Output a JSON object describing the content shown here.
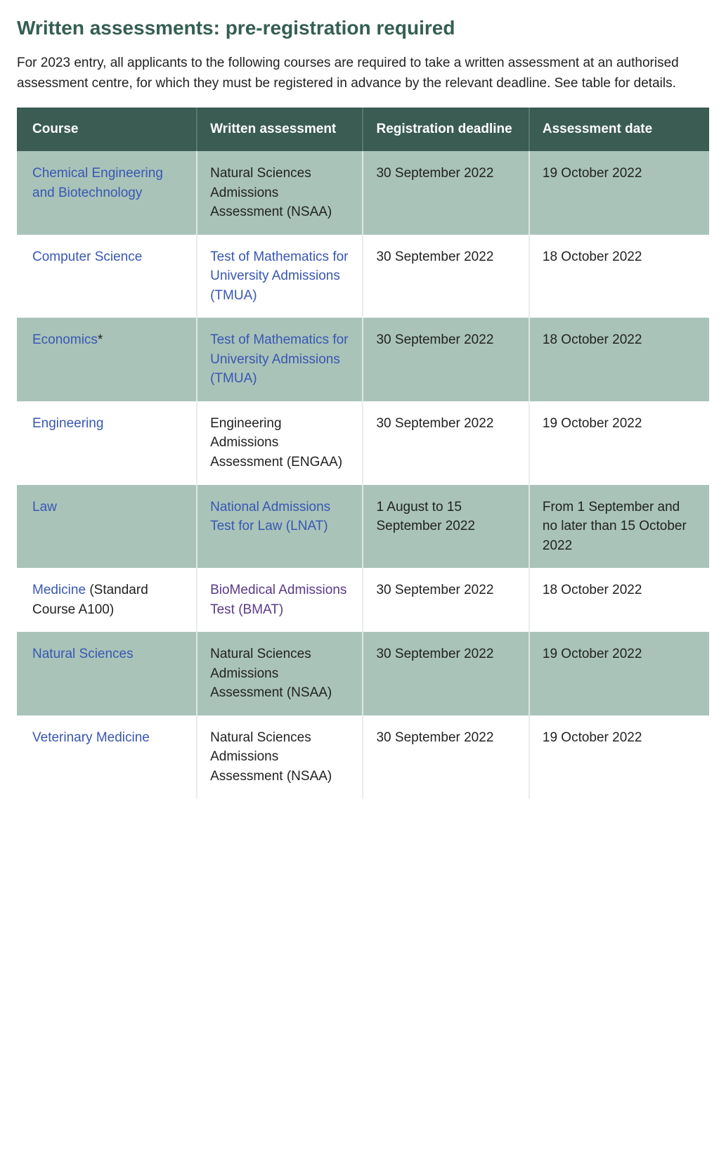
{
  "heading": "Written assessments: pre-registration required",
  "intro": "For 2023 entry, all applicants to the following courses are required to take a written assessment at an authorised assessment centre, for which they must be registered in advance by the relevant deadline. See table for details.",
  "table": {
    "headers": {
      "course": "Course",
      "assessment": "Written assessment",
      "deadline": "Registration deadline",
      "date": "Assessment date"
    },
    "rows": [
      {
        "course_link": "Chemical Engineering and Biotechnology",
        "course_suffix": "",
        "assessment_link": "",
        "assessment_text": "Natural Sciences Admissions Assessment (NSAA)",
        "assessment_is_link": false,
        "deadline": "30 September 2022",
        "date": "19 October 2022"
      },
      {
        "course_link": "Computer Science",
        "course_suffix": "",
        "assessment_link": "Test of Mathematics for University Admissions (TMUA)",
        "assessment_text": "",
        "assessment_is_link": true,
        "assessment_link_class": "link",
        "deadline": "30 September 2022",
        "date": "18 October 2022"
      },
      {
        "course_link": "Economics",
        "course_suffix": "*",
        "assessment_link": "Test of Mathematics for University Admissions (TMUA)",
        "assessment_text": "",
        "assessment_is_link": true,
        "assessment_link_class": "link",
        "deadline": "30 September 2022",
        "date": "18 October 2022"
      },
      {
        "course_link": "Engineering",
        "course_suffix": "",
        "assessment_link": "",
        "assessment_text": "Engineering Admissions Assessment (ENGAA)",
        "assessment_is_link": false,
        "deadline": "30 September 2022",
        "date": "19 October 2022"
      },
      {
        "course_link": "Law",
        "course_suffix": "",
        "assessment_link": "National Admissions Test for Law (LNAT)",
        "assessment_text": "",
        "assessment_is_link": true,
        "assessment_link_class": "link",
        "deadline": "1 August to 15 September 2022",
        "date": "From 1 September and no later than 15 October 2022"
      },
      {
        "course_link": "Medicine",
        "course_suffix": " (Standard Course A100)",
        "assessment_link": "BioMedical Admissions Test (BMAT)",
        "assessment_text": "",
        "assessment_is_link": true,
        "assessment_link_class": "vlink",
        "deadline": "30 September 2022",
        "date": "18 October 2022"
      },
      {
        "course_link": "Natural Sciences",
        "course_suffix": "",
        "assessment_link": "",
        "assessment_text": "Natural Sciences Admissions Assessment (NSAA)",
        "assessment_is_link": false,
        "deadline": "30 September 2022",
        "date": "19 October 2022"
      },
      {
        "course_link": "Veterinary Medicine",
        "course_suffix": "",
        "assessment_link": "",
        "assessment_text": "Natural Sciences Admissions Assessment (NSAA)",
        "assessment_is_link": false,
        "deadline": "30 September 2022",
        "date": "19 October 2022"
      }
    ]
  },
  "colors": {
    "heading": "#355e52",
    "header_bg": "#3a5c52",
    "header_text": "#ffffff",
    "row_odd_bg": "#a9c3b8",
    "row_even_bg": "#ffffff",
    "link": "#3857b3",
    "visited_link": "#5a3a8a",
    "body_text": "#222222"
  }
}
